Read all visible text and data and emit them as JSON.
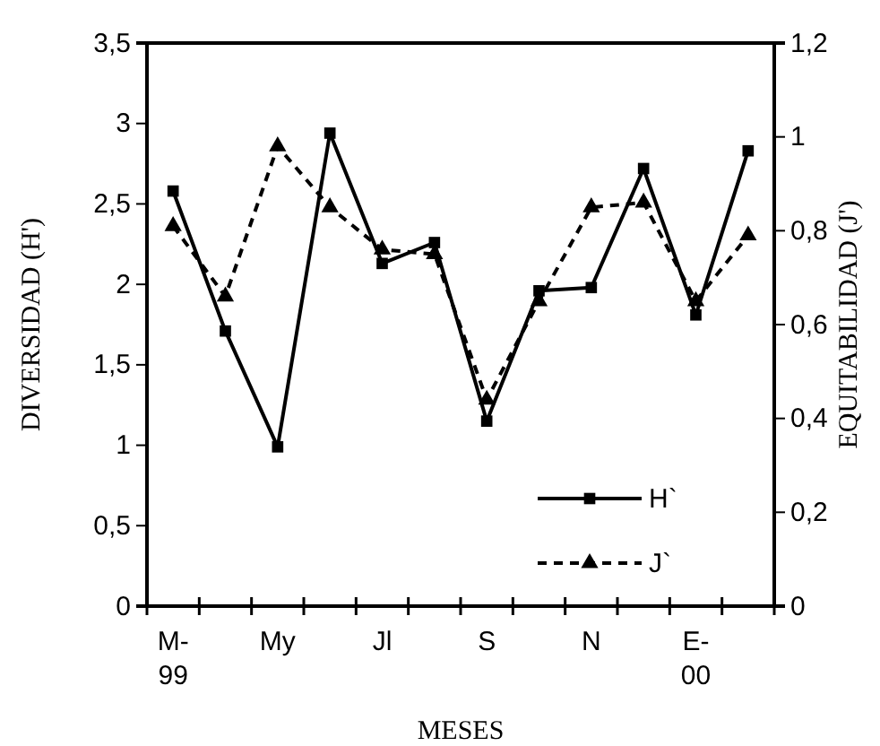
{
  "chart_data": {
    "type": "line",
    "xlabel": "MESES",
    "ylabel": "DIVERSIDAD (H')",
    "y2label": "EQUITABILIDAD (J')",
    "categories": [
      "M-99",
      null,
      "My",
      null,
      "Jl",
      null,
      "S",
      null,
      "N",
      null,
      "E-00",
      null
    ],
    "series": [
      {
        "name": "H`",
        "color": "#000000",
        "marker": "square",
        "line_style": "solid",
        "values": [
          2.58,
          1.71,
          0.99,
          2.94,
          2.13,
          2.26,
          1.15,
          1.96,
          1.98,
          2.72,
          1.81,
          2.83
        ]
      },
      {
        "name": "J`",
        "color": "#000000",
        "marker": "triangle",
        "line_style": "dashed",
        "axis": "y2",
        "values": [
          0.81,
          0.66,
          0.98,
          0.85,
          0.76,
          0.75,
          0.44,
          0.65,
          0.85,
          0.86,
          0.65,
          0.79
        ]
      }
    ],
    "ylim": [
      0,
      3.5
    ],
    "yticks": [
      0,
      {
        "value": 0.5,
        "label": "0,5"
      },
      1,
      {
        "value": 1.5,
        "label": "1,5"
      },
      2,
      {
        "value": 2.5,
        "label": "2,5"
      },
      3,
      {
        "value": 3.5,
        "label": "3,5"
      }
    ],
    "y2lim": [
      0,
      1.2
    ],
    "y2ticks": [
      0,
      {
        "value": 0.2,
        "label": "0,2"
      },
      {
        "value": 0.4,
        "label": "0,4"
      },
      {
        "value": 0.6,
        "label": "0,6"
      },
      {
        "value": 0.8,
        "label": "0,8"
      },
      1,
      {
        "value": 1.2,
        "label": "1,2"
      }
    ],
    "legend": "bottom right",
    "grid": false
  }
}
